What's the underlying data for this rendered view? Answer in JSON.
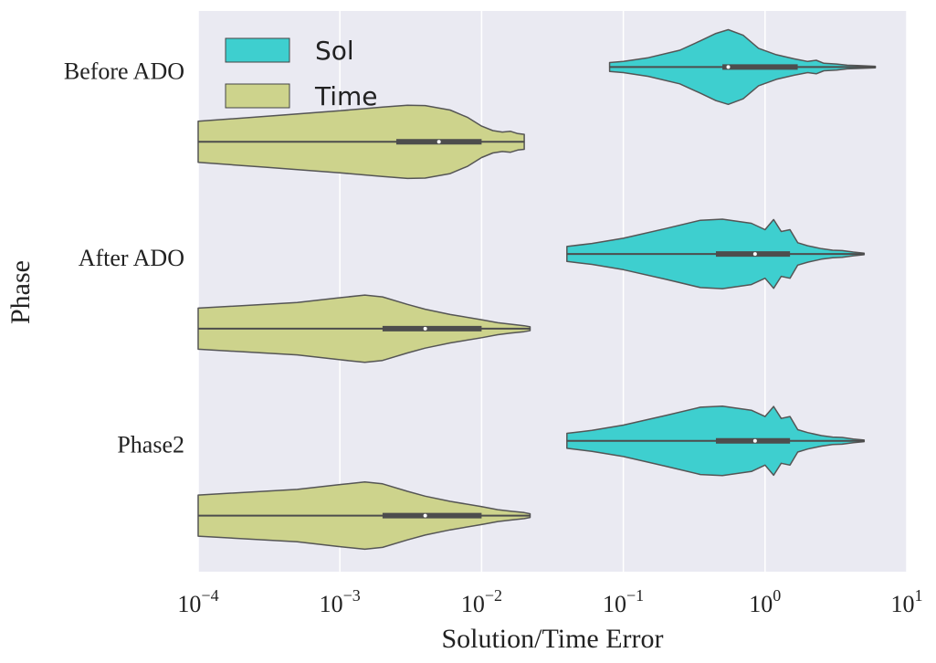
{
  "chart_data": {
    "type": "violin",
    "orientation": "horizontal",
    "xscale": "log",
    "xlim": [
      0.0001,
      10
    ],
    "xlabel": "Solution/Time Error",
    "ylabel": "Phase",
    "x_ticks": [
      {
        "base": "10",
        "exp": "−4"
      },
      {
        "base": "10",
        "exp": "−3"
      },
      {
        "base": "10",
        "exp": "−2"
      },
      {
        "base": "10",
        "exp": "−1"
      },
      {
        "base": "10",
        "exp": "0"
      },
      {
        "base": "10",
        "exp": "1"
      }
    ],
    "categories": [
      "Before ADO",
      "After ADO",
      "Phase2"
    ],
    "legend": {
      "position": "top-left",
      "entries": [
        "Sol",
        "Time"
      ]
    },
    "grid": true,
    "colors": {
      "Sol": "#3ecfcf",
      "Time": "#cdd38c",
      "background": "#eaeaf2",
      "outline": "#4d4d4d"
    },
    "series": [
      {
        "name": "Sol",
        "violins": [
          {
            "category": "Before ADO",
            "min": 0.08,
            "max": 6.0,
            "q1": 0.5,
            "median": 0.55,
            "q3": 1.7,
            "shape": [
              [
                0.08,
                0.12
              ],
              [
                0.1,
                0.15
              ],
              [
                0.15,
                0.25
              ],
              [
                0.25,
                0.45
              ],
              [
                0.35,
                0.7
              ],
              [
                0.45,
                0.9
              ],
              [
                0.55,
                1.0
              ],
              [
                0.7,
                0.85
              ],
              [
                0.9,
                0.5
              ],
              [
                1.2,
                0.33
              ],
              [
                1.6,
                0.22
              ],
              [
                2.0,
                0.15
              ],
              [
                2.3,
                0.18
              ],
              [
                2.6,
                0.1
              ],
              [
                3.2,
                0.08
              ],
              [
                3.8,
                0.05
              ],
              [
                4.5,
                0.04
              ],
              [
                6.0,
                0.02
              ]
            ]
          },
          {
            "category": "After ADO",
            "min": 0.04,
            "max": 5.0,
            "q1": 0.45,
            "median": 0.85,
            "q3": 1.5,
            "shape": [
              [
                0.04,
                0.2
              ],
              [
                0.06,
                0.28
              ],
              [
                0.1,
                0.42
              ],
              [
                0.2,
                0.68
              ],
              [
                0.35,
                0.9
              ],
              [
                0.5,
                0.93
              ],
              [
                0.8,
                0.82
              ],
              [
                1.0,
                0.65
              ],
              [
                1.15,
                0.92
              ],
              [
                1.3,
                0.6
              ],
              [
                1.5,
                0.65
              ],
              [
                1.7,
                0.3
              ],
              [
                2.0,
                0.22
              ],
              [
                2.5,
                0.14
              ],
              [
                3.0,
                0.1
              ],
              [
                3.5,
                0.09
              ],
              [
                4.2,
                0.05
              ],
              [
                5.0,
                0.02
              ]
            ]
          },
          {
            "category": "Phase2",
            "min": 0.04,
            "max": 5.0,
            "q1": 0.45,
            "median": 0.85,
            "q3": 1.5,
            "shape": [
              [
                0.04,
                0.2
              ],
              [
                0.06,
                0.28
              ],
              [
                0.1,
                0.42
              ],
              [
                0.2,
                0.68
              ],
              [
                0.35,
                0.9
              ],
              [
                0.5,
                0.93
              ],
              [
                0.8,
                0.82
              ],
              [
                1.0,
                0.65
              ],
              [
                1.15,
                0.92
              ],
              [
                1.3,
                0.6
              ],
              [
                1.5,
                0.65
              ],
              [
                1.7,
                0.3
              ],
              [
                2.0,
                0.22
              ],
              [
                2.5,
                0.14
              ],
              [
                3.0,
                0.1
              ],
              [
                3.5,
                0.09
              ],
              [
                4.2,
                0.05
              ],
              [
                5.0,
                0.02
              ]
            ]
          }
        ]
      },
      {
        "name": "Time",
        "violins": [
          {
            "category": "Before ADO",
            "min": 0.0001,
            "max": 0.02,
            "q1": 0.0025,
            "median": 0.005,
            "q3": 0.01,
            "shape": [
              [
                0.0001,
                0.55
              ],
              [
                0.0003,
                0.68
              ],
              [
                0.001,
                0.83
              ],
              [
                0.002,
                0.93
              ],
              [
                0.003,
                0.98
              ],
              [
                0.004,
                0.97
              ],
              [
                0.006,
                0.85
              ],
              [
                0.008,
                0.65
              ],
              [
                0.01,
                0.42
              ],
              [
                0.012,
                0.3
              ],
              [
                0.014,
                0.26
              ],
              [
                0.016,
                0.28
              ],
              [
                0.018,
                0.22
              ],
              [
                0.02,
                0.2
              ]
            ]
          },
          {
            "category": "After ADO",
            "min": 0.0001,
            "max": 0.022,
            "q1": 0.002,
            "median": 0.004,
            "q3": 0.01,
            "shape": [
              [
                0.0001,
                0.55
              ],
              [
                0.0005,
                0.7
              ],
              [
                0.001,
                0.83
              ],
              [
                0.0015,
                0.9
              ],
              [
                0.002,
                0.85
              ],
              [
                0.003,
                0.65
              ],
              [
                0.004,
                0.52
              ],
              [
                0.006,
                0.38
              ],
              [
                0.01,
                0.24
              ],
              [
                0.013,
                0.16
              ],
              [
                0.016,
                0.12
              ],
              [
                0.02,
                0.08
              ],
              [
                0.022,
                0.05
              ]
            ]
          },
          {
            "category": "Phase2",
            "min": 0.0001,
            "max": 0.022,
            "q1": 0.002,
            "median": 0.004,
            "q3": 0.01,
            "shape": [
              [
                0.0001,
                0.55
              ],
              [
                0.0005,
                0.7
              ],
              [
                0.001,
                0.83
              ],
              [
                0.0015,
                0.9
              ],
              [
                0.002,
                0.85
              ],
              [
                0.003,
                0.65
              ],
              [
                0.004,
                0.52
              ],
              [
                0.006,
                0.38
              ],
              [
                0.01,
                0.24
              ],
              [
                0.013,
                0.16
              ],
              [
                0.016,
                0.12
              ],
              [
                0.02,
                0.08
              ],
              [
                0.022,
                0.05
              ]
            ]
          }
        ]
      }
    ]
  }
}
